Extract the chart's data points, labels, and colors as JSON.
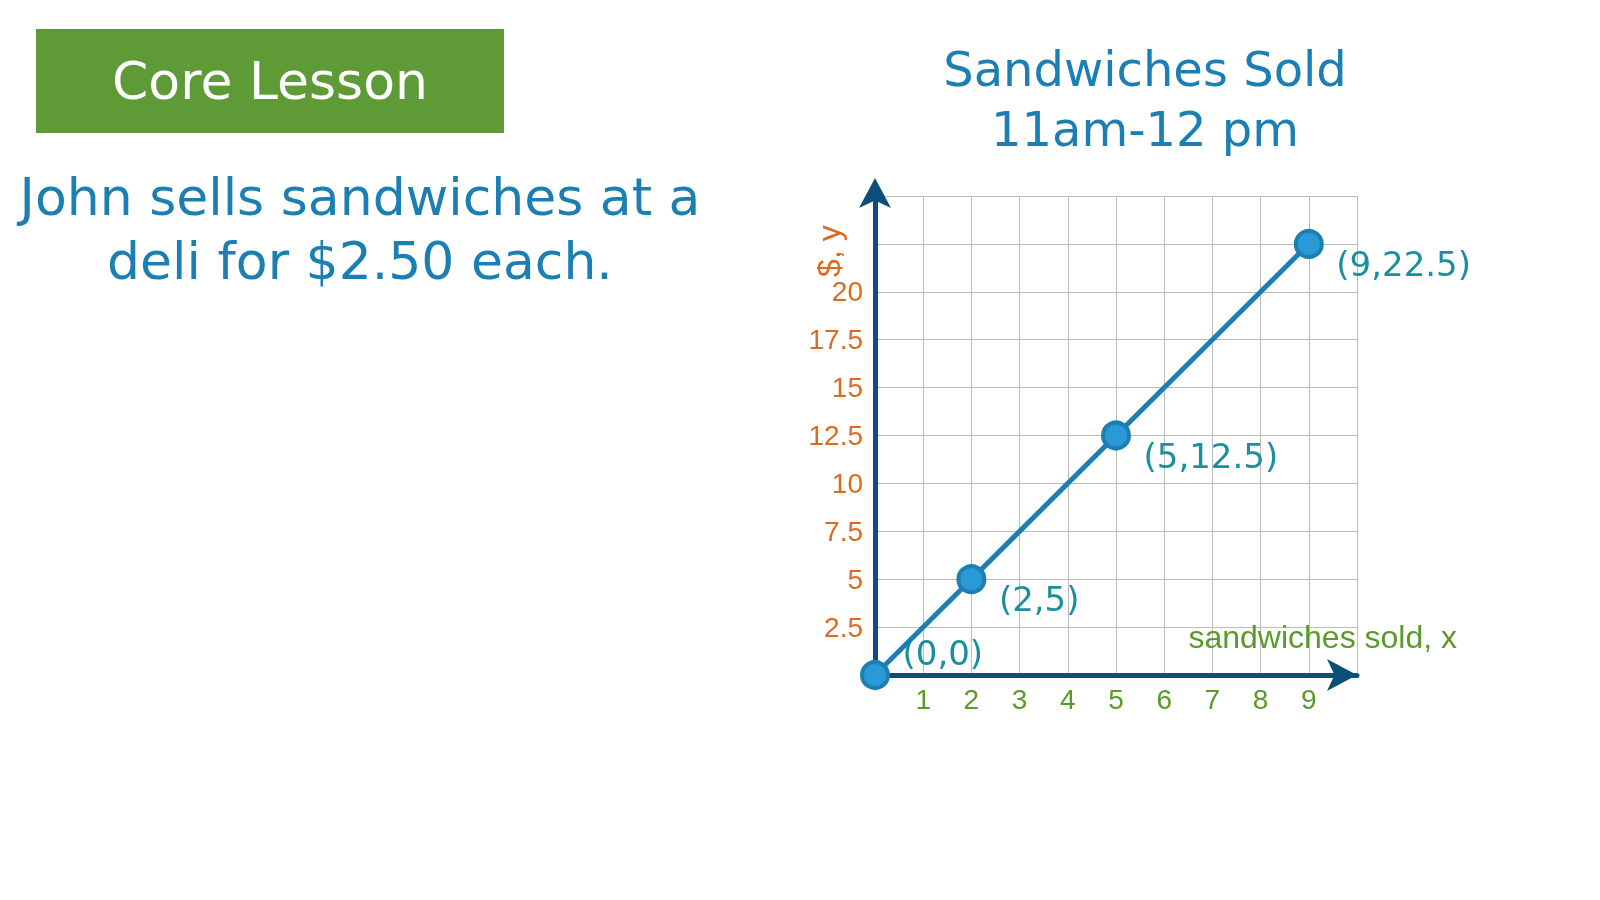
{
  "chart_data": {
    "type": "line",
    "title": "Sandwiches Sold",
    "subtitle": "11am-12 pm",
    "xlabel": "sandwiches sold, x",
    "ylabel": "$, y",
    "annotations": [
      "Core Lesson",
      "John sells sandwiches at a deli for $2.50 each.",
      {
        "text": "(0,0)",
        "x": 0,
        "y": 0
      },
      {
        "text": "(2,5)",
        "x": 2,
        "y": 5
      },
      {
        "text": "(5,12.5)",
        "x": 5,
        "y": 12.5
      },
      {
        "text": "(9,22.5)",
        "x": 9,
        "y": 22.5
      }
    ],
    "x": [
      0,
      2,
      5,
      9
    ],
    "series": [
      {
        "color": "#1b7fb3",
        "values": [
          0,
          5,
          12.5,
          22.5
        ]
      }
    ],
    "xlim": [
      0,
      10
    ],
    "xticks": [
      {
        "value": 0,
        "label": null
      },
      1,
      2,
      3,
      4,
      5,
      6,
      7,
      8,
      9,
      {
        "value": 10,
        "label": null
      }
    ],
    "ylim": [
      0,
      25
    ],
    "yticks": [
      {
        "value": 0,
        "label": null
      },
      2.5,
      5,
      7.5,
      10,
      12.5,
      15,
      17.5,
      20,
      {
        "value": 22.5,
        "label": null
      },
      {
        "value": 25,
        "label": null
      }
    ],
    "grid": true,
    "marker": "circle",
    "line_style": "solid"
  }
}
